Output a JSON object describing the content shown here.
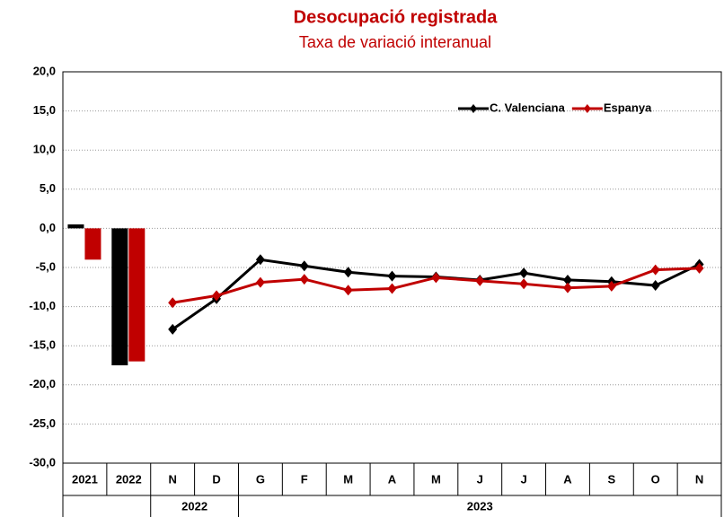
{
  "chart_data": {
    "type": "combo",
    "title": "Desocupació registrada",
    "subtitle": "Taxa de variació interanual",
    "categories": [
      "2021",
      "2022",
      "N",
      "D",
      "G",
      "F",
      "M",
      "A",
      "M",
      "J",
      "J",
      "A",
      "S",
      "O",
      "N"
    ],
    "groups": [
      {
        "label": null,
        "count": 2
      },
      {
        "label": "2022",
        "count": 2
      },
      {
        "label": "2023",
        "count": 11
      }
    ],
    "series": [
      {
        "name": "C. Valenciana",
        "color": "#000000",
        "bar_values": [
          0.5,
          -17.5,
          null,
          null,
          null,
          null,
          null,
          null,
          null,
          null,
          null,
          null,
          null,
          null,
          null
        ],
        "values": [
          null,
          null,
          -12.9,
          -9.0,
          -4.0,
          -4.8,
          -5.6,
          -6.1,
          -6.2,
          -6.6,
          -5.7,
          -6.6,
          -6.8,
          -7.3,
          -4.6
        ]
      },
      {
        "name": "Espanya",
        "color": "#c00000",
        "bar_values": [
          -4.0,
          -17.0,
          null,
          null,
          null,
          null,
          null,
          null,
          null,
          null,
          null,
          null,
          null,
          null,
          null
        ],
        "values": [
          null,
          null,
          -9.5,
          -8.6,
          -6.9,
          -6.5,
          -7.9,
          -7.7,
          -6.3,
          -6.7,
          -7.1,
          -7.6,
          -7.4,
          -5.3,
          -5.1
        ]
      }
    ],
    "ylim": [
      -30,
      20
    ],
    "yticks": [
      {
        "value": -30,
        "label": "-30,0"
      },
      {
        "value": -25,
        "label": "-25,0"
      },
      {
        "value": -20,
        "label": "-20,0"
      },
      {
        "value": -15,
        "label": "-15,0"
      },
      {
        "value": -10,
        "label": "-10,0"
      },
      {
        "value": -5,
        "label": "-5,0"
      },
      {
        "value": 0,
        "label": "0,0"
      },
      {
        "value": 5,
        "label": "5,0"
      },
      {
        "value": 10,
        "label": "10,0"
      },
      {
        "value": 15,
        "label": "15,0"
      },
      {
        "value": 20,
        "label": "20,0"
      }
    ],
    "grid": true,
    "legend": "top-right"
  }
}
